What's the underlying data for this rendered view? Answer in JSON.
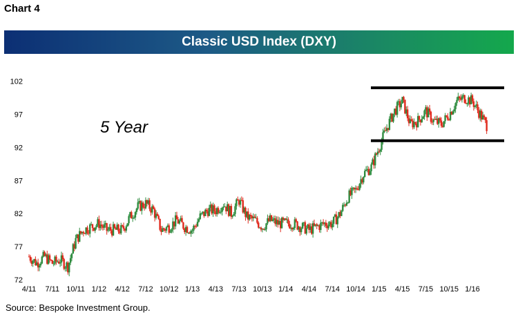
{
  "header": {
    "chart_number": "Chart 4"
  },
  "footer": {
    "source": "Source: Bespoke Investment Group."
  },
  "colors": {
    "banner_start": "#0c2f74",
    "banner_end": "#14a84c",
    "up_candle": "#2e8b3e",
    "down_candle": "#e0291c",
    "range_lines": "#000000"
  },
  "chart_data": {
    "type": "line",
    "style": "ohlc-candles",
    "title": "Classic USD Index (DXY)",
    "xlabel": "",
    "ylabel": "",
    "annotation": "5 Year",
    "ylim": [
      72,
      103
    ],
    "yticks": [
      72,
      77,
      82,
      87,
      92,
      97,
      102
    ],
    "x_tick_labels": [
      "4/11",
      "7/11",
      "10/11",
      "1/12",
      "4/12",
      "7/12",
      "10/12",
      "1/13",
      "4/13",
      "7/13",
      "10/13",
      "1/14",
      "4/14",
      "7/14",
      "10/14",
      "1/15",
      "4/15",
      "7/15",
      "10/15",
      "1/16"
    ],
    "grid": false,
    "legend": "none",
    "range_lines": [
      101,
      93
    ],
    "series": [
      {
        "x": [
          "4/11",
          "5/11",
          "6/11",
          "7/11",
          "8/11",
          "9/11",
          "10/11",
          "11/11",
          "12/11",
          "1/12",
          "2/12",
          "3/12",
          "4/12",
          "5/12",
          "6/12",
          "7/12",
          "8/12",
          "9/12",
          "10/12",
          "11/12",
          "12/12",
          "1/13",
          "2/13",
          "3/13",
          "4/13",
          "5/13",
          "6/13",
          "7/13",
          "8/13",
          "9/13",
          "10/13",
          "11/13",
          "12/13",
          "1/14",
          "2/14",
          "3/14",
          "4/14",
          "5/14",
          "6/14",
          "7/14",
          "8/14",
          "9/14",
          "10/14",
          "11/14",
          "12/14",
          "1/15",
          "2/15",
          "3/15",
          "4/15",
          "5/15",
          "6/15",
          "7/15",
          "8/15",
          "9/15",
          "10/15",
          "11/15",
          "12/15",
          "1/16",
          "2/16",
          "3/16"
        ],
        "values": [
          75.5,
          74.5,
          75.5,
          74.5,
          75.0,
          74.0,
          78.0,
          79.5,
          80.0,
          80.5,
          79.5,
          79.5,
          79.5,
          81.5,
          83.0,
          83.5,
          82.5,
          79.5,
          80.0,
          81.0,
          80.0,
          79.5,
          81.5,
          82.5,
          82.5,
          83.5,
          82.0,
          84.0,
          81.5,
          81.0,
          80.0,
          81.0,
          80.5,
          80.5,
          80.5,
          80.0,
          79.5,
          80.0,
          80.5,
          80.5,
          82.0,
          84.5,
          85.5,
          88.0,
          89.0,
          92.0,
          95.0,
          97.5,
          99.0,
          95.5,
          96.0,
          97.5,
          96.0,
          95.5,
          97.0,
          99.0,
          99.5,
          99.0,
          97.0,
          95.0
        ]
      }
    ]
  }
}
